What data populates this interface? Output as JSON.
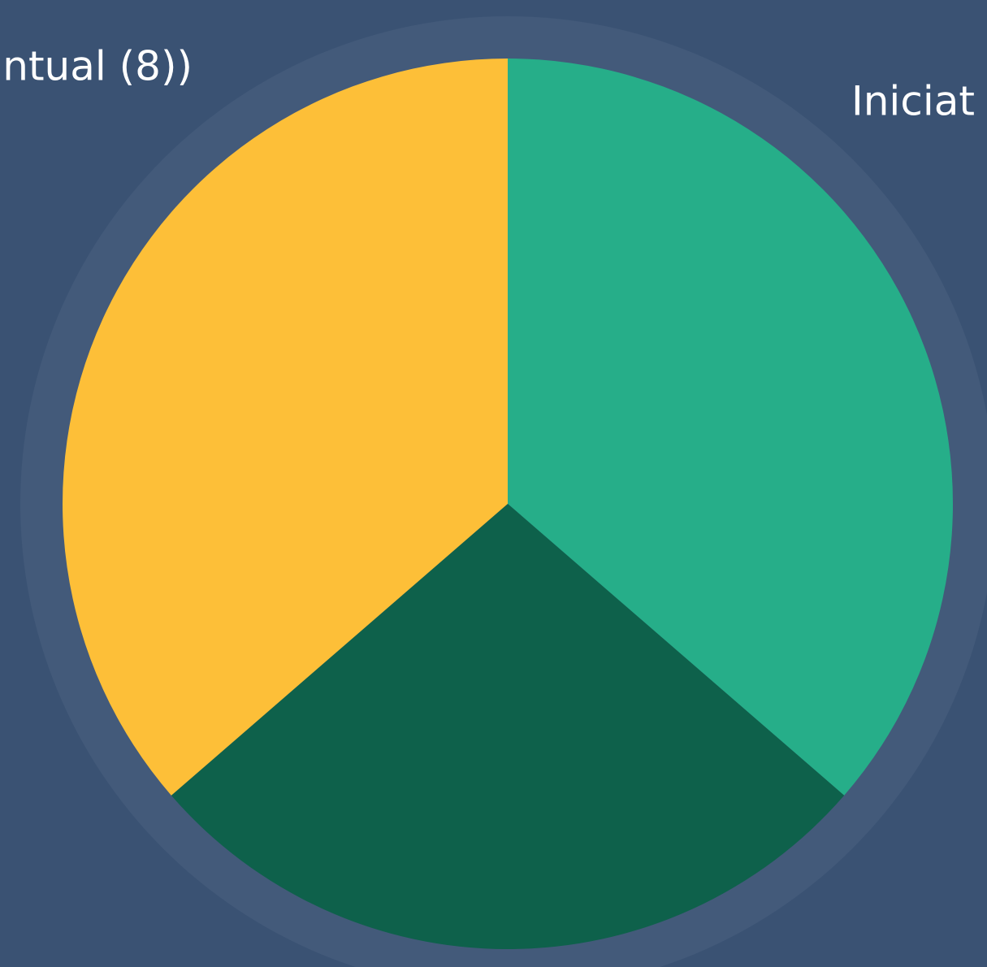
{
  "chart_data": {
    "type": "pie",
    "categories": [
      "Iniciat",
      null,
      "ntual (8))"
    ],
    "values": [
      8,
      6,
      8
    ],
    "colors": [
      "#26ae89",
      "#0e614b",
      "#fdbf38"
    ]
  }
}
